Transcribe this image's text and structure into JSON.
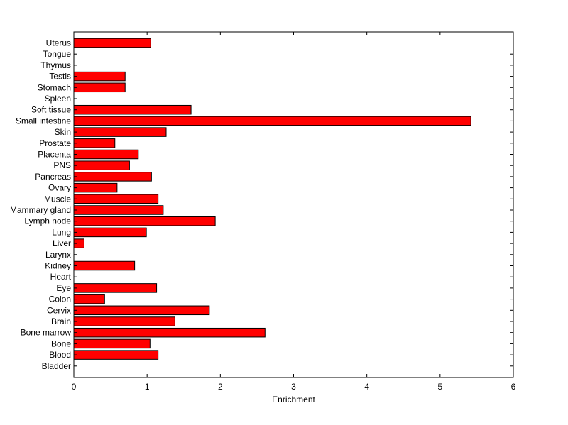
{
  "chart_data": {
    "type": "bar",
    "orientation": "horizontal",
    "categories": [
      "Uterus",
      "Tongue",
      "Thymus",
      "Testis",
      "Stomach",
      "Spleen",
      "Soft tissue",
      "Small intestine",
      "Skin",
      "Prostate",
      "Placenta",
      "PNS",
      "Pancreas",
      "Ovary",
      "Muscle",
      "Mammary gland",
      "Lymph node",
      "Lung",
      "Liver",
      "Larynx",
      "Kidney",
      "Heart",
      "Eye",
      "Colon",
      "Cervix",
      "Brain",
      "Bone marrow",
      "Bone",
      "Blood",
      "Bladder"
    ],
    "values": [
      1.05,
      0,
      0,
      0.7,
      0.7,
      0,
      1.6,
      5.42,
      1.26,
      0.56,
      0.88,
      0.76,
      1.06,
      0.59,
      1.15,
      1.22,
      1.93,
      0.99,
      0.14,
      0,
      0.83,
      0,
      1.13,
      0.42,
      1.85,
      1.38,
      2.61,
      1.04,
      1.15,
      0
    ],
    "xlabel": "Enrichment",
    "ylabel": "",
    "title": "",
    "xlim": [
      0,
      6
    ],
    "xticks": [
      "0",
      "1",
      "2",
      "3",
      "4",
      "5",
      "6"
    ],
    "grid": false,
    "bar_color": "#ff0000",
    "edge_color": "#000000"
  }
}
